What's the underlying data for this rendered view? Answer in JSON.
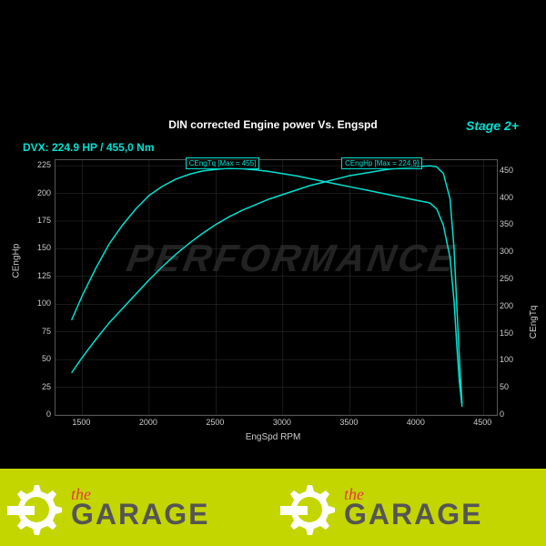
{
  "chart": {
    "title": "DIN corrected Engine power Vs. Engspd",
    "stage": "Stage 2+",
    "dvx": "DVX:  224.9 HP / 455,0 Nm",
    "xlabel": "EngSpd RPM",
    "yleft": "CEngHp",
    "yright": "CEngTq",
    "xlim": [
      1300,
      4600
    ],
    "ylim_left": [
      0,
      230
    ],
    "ylim_right": [
      0,
      470
    ],
    "xticks": [
      1500,
      2000,
      2500,
      3000,
      3500,
      4000,
      4500
    ],
    "yticks_left": [
      0,
      25,
      50,
      75,
      100,
      125,
      150,
      175,
      200,
      225
    ],
    "yticks_right": [
      0,
      50,
      100,
      150,
      200,
      250,
      300,
      350,
      400,
      450
    ],
    "line_color": "#00e0d0",
    "grid_color": "#333333",
    "bg_color": "#000000",
    "text_color": "#cccccc",
    "watermark": "PERFORMANCE",
    "label_tq": "CEngTq [Max = 455]",
    "label_hp": "CEngHp [Max = 224.9]",
    "label_tq_x": 2550,
    "label_hp_x": 3750,
    "hp_curve": [
      [
        1420,
        38
      ],
      [
        1500,
        52
      ],
      [
        1600,
        68
      ],
      [
        1700,
        83
      ],
      [
        1800,
        96
      ],
      [
        1900,
        109
      ],
      [
        2000,
        122
      ],
      [
        2100,
        134
      ],
      [
        2200,
        145
      ],
      [
        2300,
        155
      ],
      [
        2400,
        164
      ],
      [
        2500,
        172
      ],
      [
        2600,
        179
      ],
      [
        2700,
        185
      ],
      [
        2800,
        190
      ],
      [
        2900,
        195
      ],
      [
        3000,
        199
      ],
      [
        3100,
        203
      ],
      [
        3200,
        207
      ],
      [
        3300,
        210
      ],
      [
        3400,
        213
      ],
      [
        3500,
        216
      ],
      [
        3600,
        218
      ],
      [
        3700,
        220
      ],
      [
        3800,
        222
      ],
      [
        3900,
        223
      ],
      [
        4000,
        224
      ],
      [
        4100,
        224.9
      ],
      [
        4150,
        224
      ],
      [
        4200,
        218
      ],
      [
        4250,
        195
      ],
      [
        4280,
        150
      ],
      [
        4300,
        100
      ],
      [
        4320,
        50
      ],
      [
        4340,
        10
      ]
    ],
    "tq_curve": [
      [
        1420,
        175
      ],
      [
        1500,
        220
      ],
      [
        1600,
        270
      ],
      [
        1700,
        315
      ],
      [
        1800,
        350
      ],
      [
        1900,
        380
      ],
      [
        2000,
        405
      ],
      [
        2100,
        422
      ],
      [
        2200,
        435
      ],
      [
        2300,
        444
      ],
      [
        2400,
        450
      ],
      [
        2500,
        453
      ],
      [
        2600,
        455
      ],
      [
        2700,
        454
      ],
      [
        2800,
        452
      ],
      [
        2900,
        449
      ],
      [
        3000,
        445
      ],
      [
        3100,
        441
      ],
      [
        3200,
        436
      ],
      [
        3300,
        431
      ],
      [
        3400,
        426
      ],
      [
        3500,
        421
      ],
      [
        3600,
        416
      ],
      [
        3700,
        411
      ],
      [
        3800,
        406
      ],
      [
        3900,
        401
      ],
      [
        4000,
        396
      ],
      [
        4100,
        391
      ],
      [
        4150,
        380
      ],
      [
        4200,
        350
      ],
      [
        4250,
        290
      ],
      [
        4280,
        210
      ],
      [
        4300,
        130
      ],
      [
        4320,
        60
      ],
      [
        4340,
        15
      ]
    ]
  },
  "footer": {
    "the": "the",
    "garage": "GARAGE",
    "bg": "#c4d600",
    "gear_color": "#ffffff",
    "the_color": "#e63946",
    "garage_color": "#555555"
  }
}
